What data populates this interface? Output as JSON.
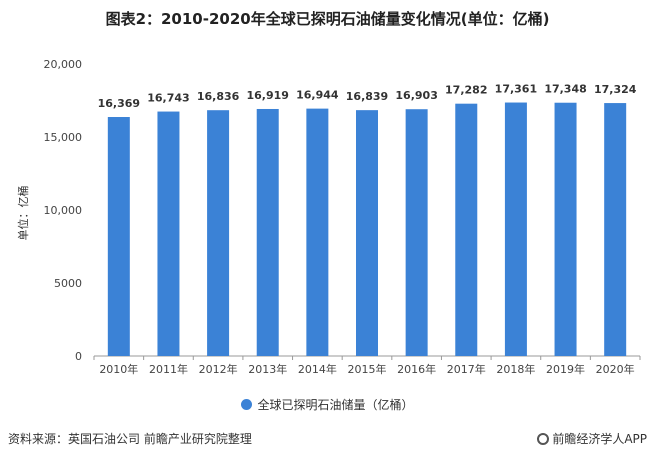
{
  "chart_data": {
    "type": "bar",
    "title": "图表2：2010-2020年全球已探明石油储量变化情况(单位：亿桶)",
    "ylabel": "单位：亿桶",
    "xlabel": "",
    "categories": [
      "2010年",
      "2011年",
      "2012年",
      "2013年",
      "2014年",
      "2015年",
      "2016年",
      "2017年",
      "2018年",
      "2019年",
      "2020年"
    ],
    "series": [
      {
        "name": "全球已探明石油储量（亿桶）",
        "values": [
          16369,
          16743,
          16836,
          16919,
          16944,
          16839,
          16903,
          17282,
          17361,
          17348,
          17324
        ]
      }
    ],
    "data_labels": [
      "16,369",
      "16,743",
      "16,836",
      "16,919",
      "16,944",
      "16,839",
      "16,903",
      "17,282",
      "17,361",
      "17,348",
      "17,324"
    ],
    "ylim": [
      0,
      20000
    ],
    "yticks": [
      0,
      5000,
      10000,
      15000,
      20000
    ],
    "ytick_labels": [
      "0",
      "5000",
      "10,000",
      "15,000",
      "20,000"
    ],
    "grid": false,
    "legend_position": "bottom-center",
    "bar_color": "#3b82d6"
  },
  "footer": {
    "source": "资料来源：英国石油公司 前瞻产业研究院整理",
    "brand": "前瞻经济学人APP"
  }
}
